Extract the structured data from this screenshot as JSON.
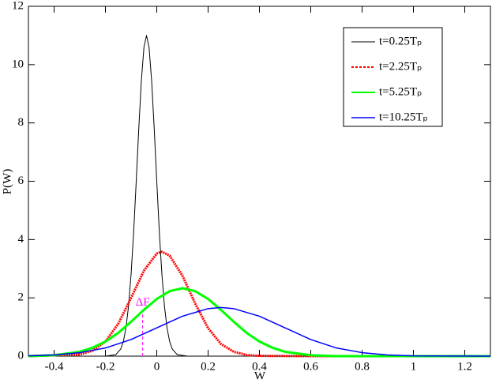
{
  "chart_data": {
    "type": "line",
    "xlabel": "W",
    "ylabel": "P(W)",
    "xlim": [
      -0.5,
      1.3
    ],
    "xticks": [
      -0.4,
      -0.2,
      0,
      0.2,
      0.4,
      0.6,
      0.8,
      1,
      1.2
    ],
    "ylim": [
      0,
      12
    ],
    "yticks": [
      0,
      2,
      4,
      6,
      8,
      10,
      12
    ],
    "grid": false,
    "legend": "upper right",
    "series": [
      {
        "name": "t=0.25Tₚ",
        "color": "#000000",
        "width": 1,
        "dash": false,
        "x": [
          -0.5,
          -0.2,
          -0.16,
          -0.14,
          -0.13,
          -0.12,
          -0.11,
          -0.1,
          -0.09,
          -0.08,
          -0.07,
          -0.06,
          -0.05,
          -0.04,
          -0.03,
          -0.02,
          -0.01,
          0,
          0.01,
          0.02,
          0.03,
          0.04,
          0.05,
          0.06,
          0.08,
          0.12,
          1.3
        ],
        "values": [
          0,
          0,
          0.05,
          0.25,
          0.51,
          0.97,
          1.71,
          2.81,
          4.26,
          6.0,
          7.82,
          9.45,
          10.59,
          11,
          10.59,
          9.45,
          7.82,
          6.0,
          4.26,
          2.81,
          1.71,
          0.97,
          0.51,
          0.25,
          0.05,
          0,
          0
        ]
      },
      {
        "name": "t=2.25Tₚ",
        "color": "#ff0000",
        "width": 3,
        "dash": true,
        "x": [
          -0.5,
          -0.3,
          -0.25,
          -0.2,
          -0.15,
          -0.1,
          -0.05,
          0,
          0.02,
          0.05,
          0.1,
          0.15,
          0.2,
          0.25,
          0.3,
          0.35,
          0.4,
          0.6,
          1.3
        ],
        "values": [
          0,
          0.06,
          0.19,
          0.5,
          1.11,
          2.0,
          2.93,
          3.52,
          3.58,
          3.45,
          2.76,
          1.8,
          0.96,
          0.42,
          0.15,
          0.04,
          0.01,
          0,
          0
        ]
      },
      {
        "name": "t=5.25Tₚ",
        "color": "#00ff00",
        "width": 3,
        "dash": false,
        "x": [
          -0.5,
          -0.4,
          -0.3,
          -0.25,
          -0.2,
          -0.15,
          -0.1,
          -0.05,
          0,
          0.05,
          0.1,
          0.15,
          0.2,
          0.25,
          0.3,
          0.35,
          0.4,
          0.45,
          0.5,
          0.6,
          0.7,
          1.3
        ],
        "values": [
          0,
          0.03,
          0.15,
          0.29,
          0.5,
          0.8,
          1.18,
          1.59,
          1.96,
          2.23,
          2.33,
          2.23,
          1.96,
          1.59,
          1.18,
          0.8,
          0.5,
          0.29,
          0.15,
          0.03,
          0,
          0
        ]
      },
      {
        "name": "t=10.25Tₚ",
        "color": "#0000ff",
        "width": 1.5,
        "dash": false,
        "x": [
          -0.5,
          -0.4,
          -0.3,
          -0.2,
          -0.1,
          0,
          0.1,
          0.2,
          0.25,
          0.3,
          0.4,
          0.5,
          0.6,
          0.7,
          0.8,
          0.9,
          1.0,
          1.3
        ],
        "values": [
          0.01,
          0.04,
          0.12,
          0.28,
          0.57,
          0.97,
          1.37,
          1.63,
          1.67,
          1.63,
          1.37,
          0.97,
          0.57,
          0.28,
          0.12,
          0.04,
          0.01,
          0
        ]
      }
    ],
    "annotation": {
      "text": "ΔF",
      "x": -0.055,
      "y": 1.5,
      "color": "#ff00ff"
    }
  }
}
